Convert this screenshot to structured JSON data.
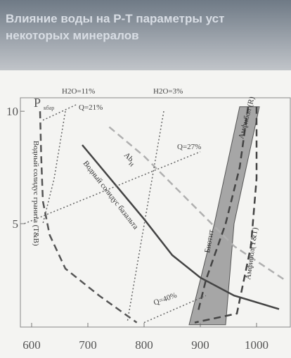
{
  "chart_data": {
    "type": "line",
    "title": [
      "Влияние воды на P-T параметры уст",
      "некоторых минералов"
    ],
    "y_label": "P",
    "y_label_sub": "кбар",
    "xlim": [
      580,
      1060
    ],
    "ylim": [
      0.4,
      10.6
    ],
    "xticks": [
      600,
      700,
      800,
      900,
      1000
    ],
    "yticks": [
      5,
      10
    ],
    "series": [
      {
        "name": "Биотит",
        "style": "fill",
        "color": "#8c8c8c",
        "x": [
          880,
          925,
          970,
          1005,
          960,
          945
        ],
        "values": [
          0.5,
          5,
          10.2,
          10.2,
          5,
          0.5
        ]
      },
      {
        "name": "Водный солидус гранита (T&B)",
        "style": "dashed",
        "color": "#555555",
        "x": [
          615,
          617,
          620,
          632,
          660,
          720,
          787
        ],
        "values": [
          10,
          8,
          6,
          4.5,
          3,
          1.8,
          0.6
        ]
      },
      {
        "name": "Водный солидус базальта",
        "style": "solid",
        "color": "#444444",
        "x": [
          690,
          740,
          800,
          850,
          900,
          960,
          1040
        ],
        "values": [
          8.5,
          7,
          5.2,
          3.6,
          2.6,
          1.8,
          1.2
        ]
      },
      {
        "name": "Ab",
        "sub": "H",
        "style": "dashed",
        "color": "#b0b0b0",
        "x": [
          738,
          800,
          880,
          960,
          1050
        ],
        "values": [
          9.3,
          8,
          6,
          4,
          2.5
        ]
      },
      {
        "name": "Амфибол (R)",
        "style": "dashed",
        "color": "#444444",
        "x": [
          985,
          970,
          945,
          910,
          895
        ],
        "values": [
          10.2,
          7.5,
          5,
          2.5,
          1
        ]
      },
      {
        "name": "Амфибол(Y&T)",
        "style": "dashed",
        "color": "#444444",
        "x": [
          1000,
          1000,
          990,
          965,
          890
        ],
        "values": [
          10.2,
          7,
          4,
          1,
          0.6
        ]
      },
      {
        "name": "H2O=11%",
        "style": "dotted",
        "color": "#666666",
        "x": [
          660,
          640,
          620
        ],
        "values": [
          10,
          7,
          5
        ]
      },
      {
        "name": "H2O=3%",
        "style": "dotted",
        "color": "#666666",
        "x": [
          835,
          770
        ],
        "values": [
          10,
          0.6
        ]
      },
      {
        "name": "Q=21%",
        "style": "dotted",
        "color": "#666666",
        "x": [
          620,
          680
        ],
        "values": [
          9.6,
          10.3
        ]
      },
      {
        "name": "Q=27%",
        "style": "dotted",
        "color": "#666666",
        "x": [
          587,
          900
        ],
        "values": [
          5,
          8.2
        ]
      },
      {
        "name": "Q=40%",
        "style": "dotted",
        "color": "#666666",
        "x": [
          800,
          910
        ],
        "values": [
          0.6,
          1.8
        ]
      }
    ]
  }
}
